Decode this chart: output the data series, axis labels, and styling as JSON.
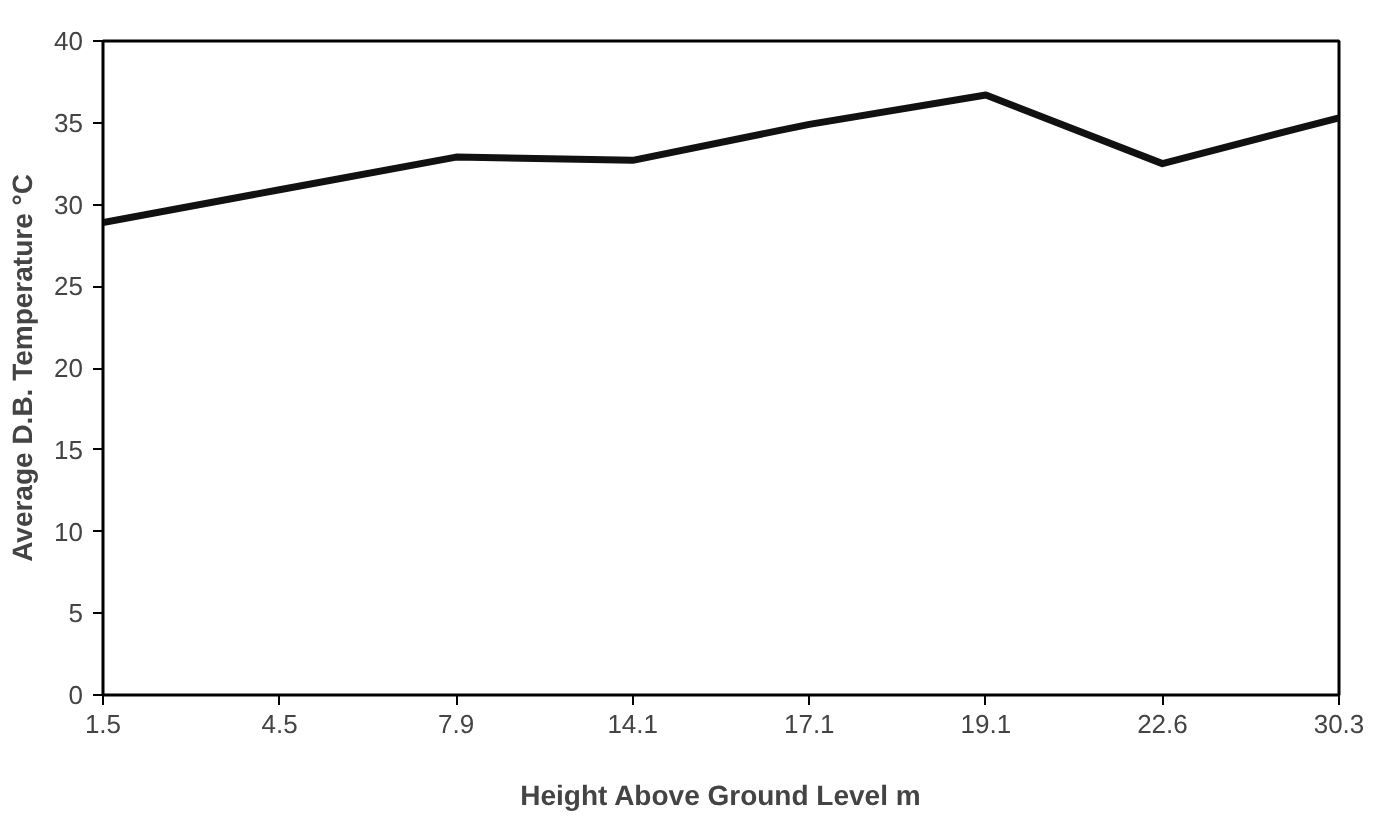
{
  "chart_data": {
    "type": "line",
    "xlabel": "Height Above Ground Level m",
    "ylabel": "Average D.B. Temperature °C",
    "categories": [
      "1.5",
      "4.5",
      "7.9",
      "14.1",
      "17.1",
      "19.1",
      "22.6",
      "30.3"
    ],
    "series": [
      {
        "color": "#111111",
        "values": [
          28.9,
          30.9,
          32.9,
          32.7,
          34.9,
          36.7,
          32.5,
          35.3
        ]
      }
    ],
    "ylim": [
      0,
      40
    ],
    "yticks": [
      0,
      5,
      10,
      15,
      20,
      25,
      30,
      35,
      40
    ],
    "grid": false,
    "marker": "none",
    "line_style": "solid"
  }
}
